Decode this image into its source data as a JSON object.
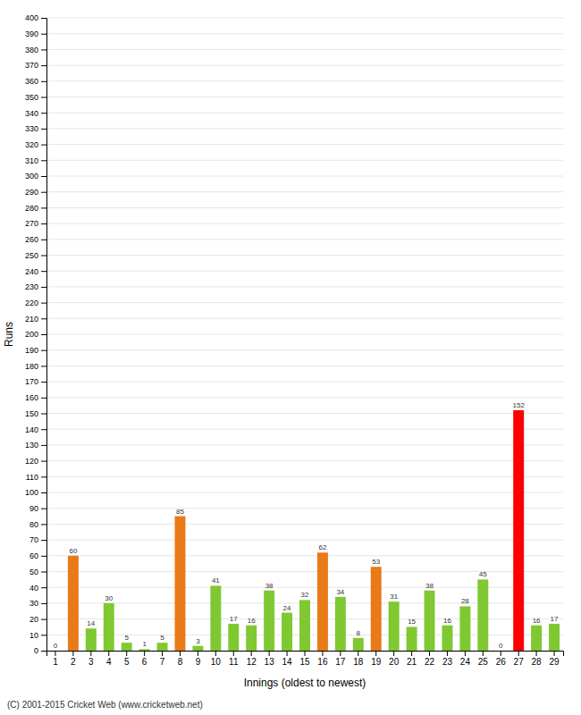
{
  "chart_data": {
    "type": "bar",
    "xlabel": "Innings (oldest to newest)",
    "ylabel": "Runs",
    "annotations": [
      "(C) 2001-2015 Cricket Web (www.cricketweb.net)"
    ],
    "categories": [
      1,
      2,
      3,
      4,
      5,
      6,
      7,
      8,
      9,
      10,
      11,
      12,
      13,
      14,
      15,
      16,
      17,
      18,
      19,
      20,
      21,
      22,
      23,
      24,
      25,
      26,
      27,
      28,
      29
    ],
    "values": [
      0,
      60,
      14,
      30,
      5,
      1,
      5,
      85,
      3,
      41,
      17,
      16,
      38,
      24,
      32,
      62,
      34,
      8,
      53,
      31,
      15,
      38,
      16,
      28,
      45,
      0,
      152,
      16,
      17
    ],
    "colors": [
      "#7fc832",
      "#e87a18",
      "#7fc832",
      "#7fc832",
      "#7fc832",
      "#7fc832",
      "#7fc832",
      "#e87a18",
      "#7fc832",
      "#7fc832",
      "#7fc832",
      "#7fc832",
      "#7fc832",
      "#7fc832",
      "#7fc832",
      "#e87a18",
      "#7fc832",
      "#7fc832",
      "#e87a18",
      "#7fc832",
      "#7fc832",
      "#7fc832",
      "#7fc832",
      "#7fc832",
      "#7fc832",
      "#7fc832",
      "#ff0000",
      "#7fc832",
      "#7fc832"
    ],
    "ylim": [
      0,
      400
    ],
    "yticks": [
      0,
      10,
      20,
      30,
      40,
      50,
      60,
      70,
      80,
      90,
      100,
      110,
      120,
      130,
      140,
      150,
      160,
      170,
      180,
      190,
      200,
      210,
      220,
      230,
      240,
      250,
      260,
      270,
      280,
      290,
      300,
      310,
      320,
      330,
      340,
      350,
      360,
      370,
      380,
      390,
      400
    ],
    "grid": true,
    "data_labels": true
  }
}
